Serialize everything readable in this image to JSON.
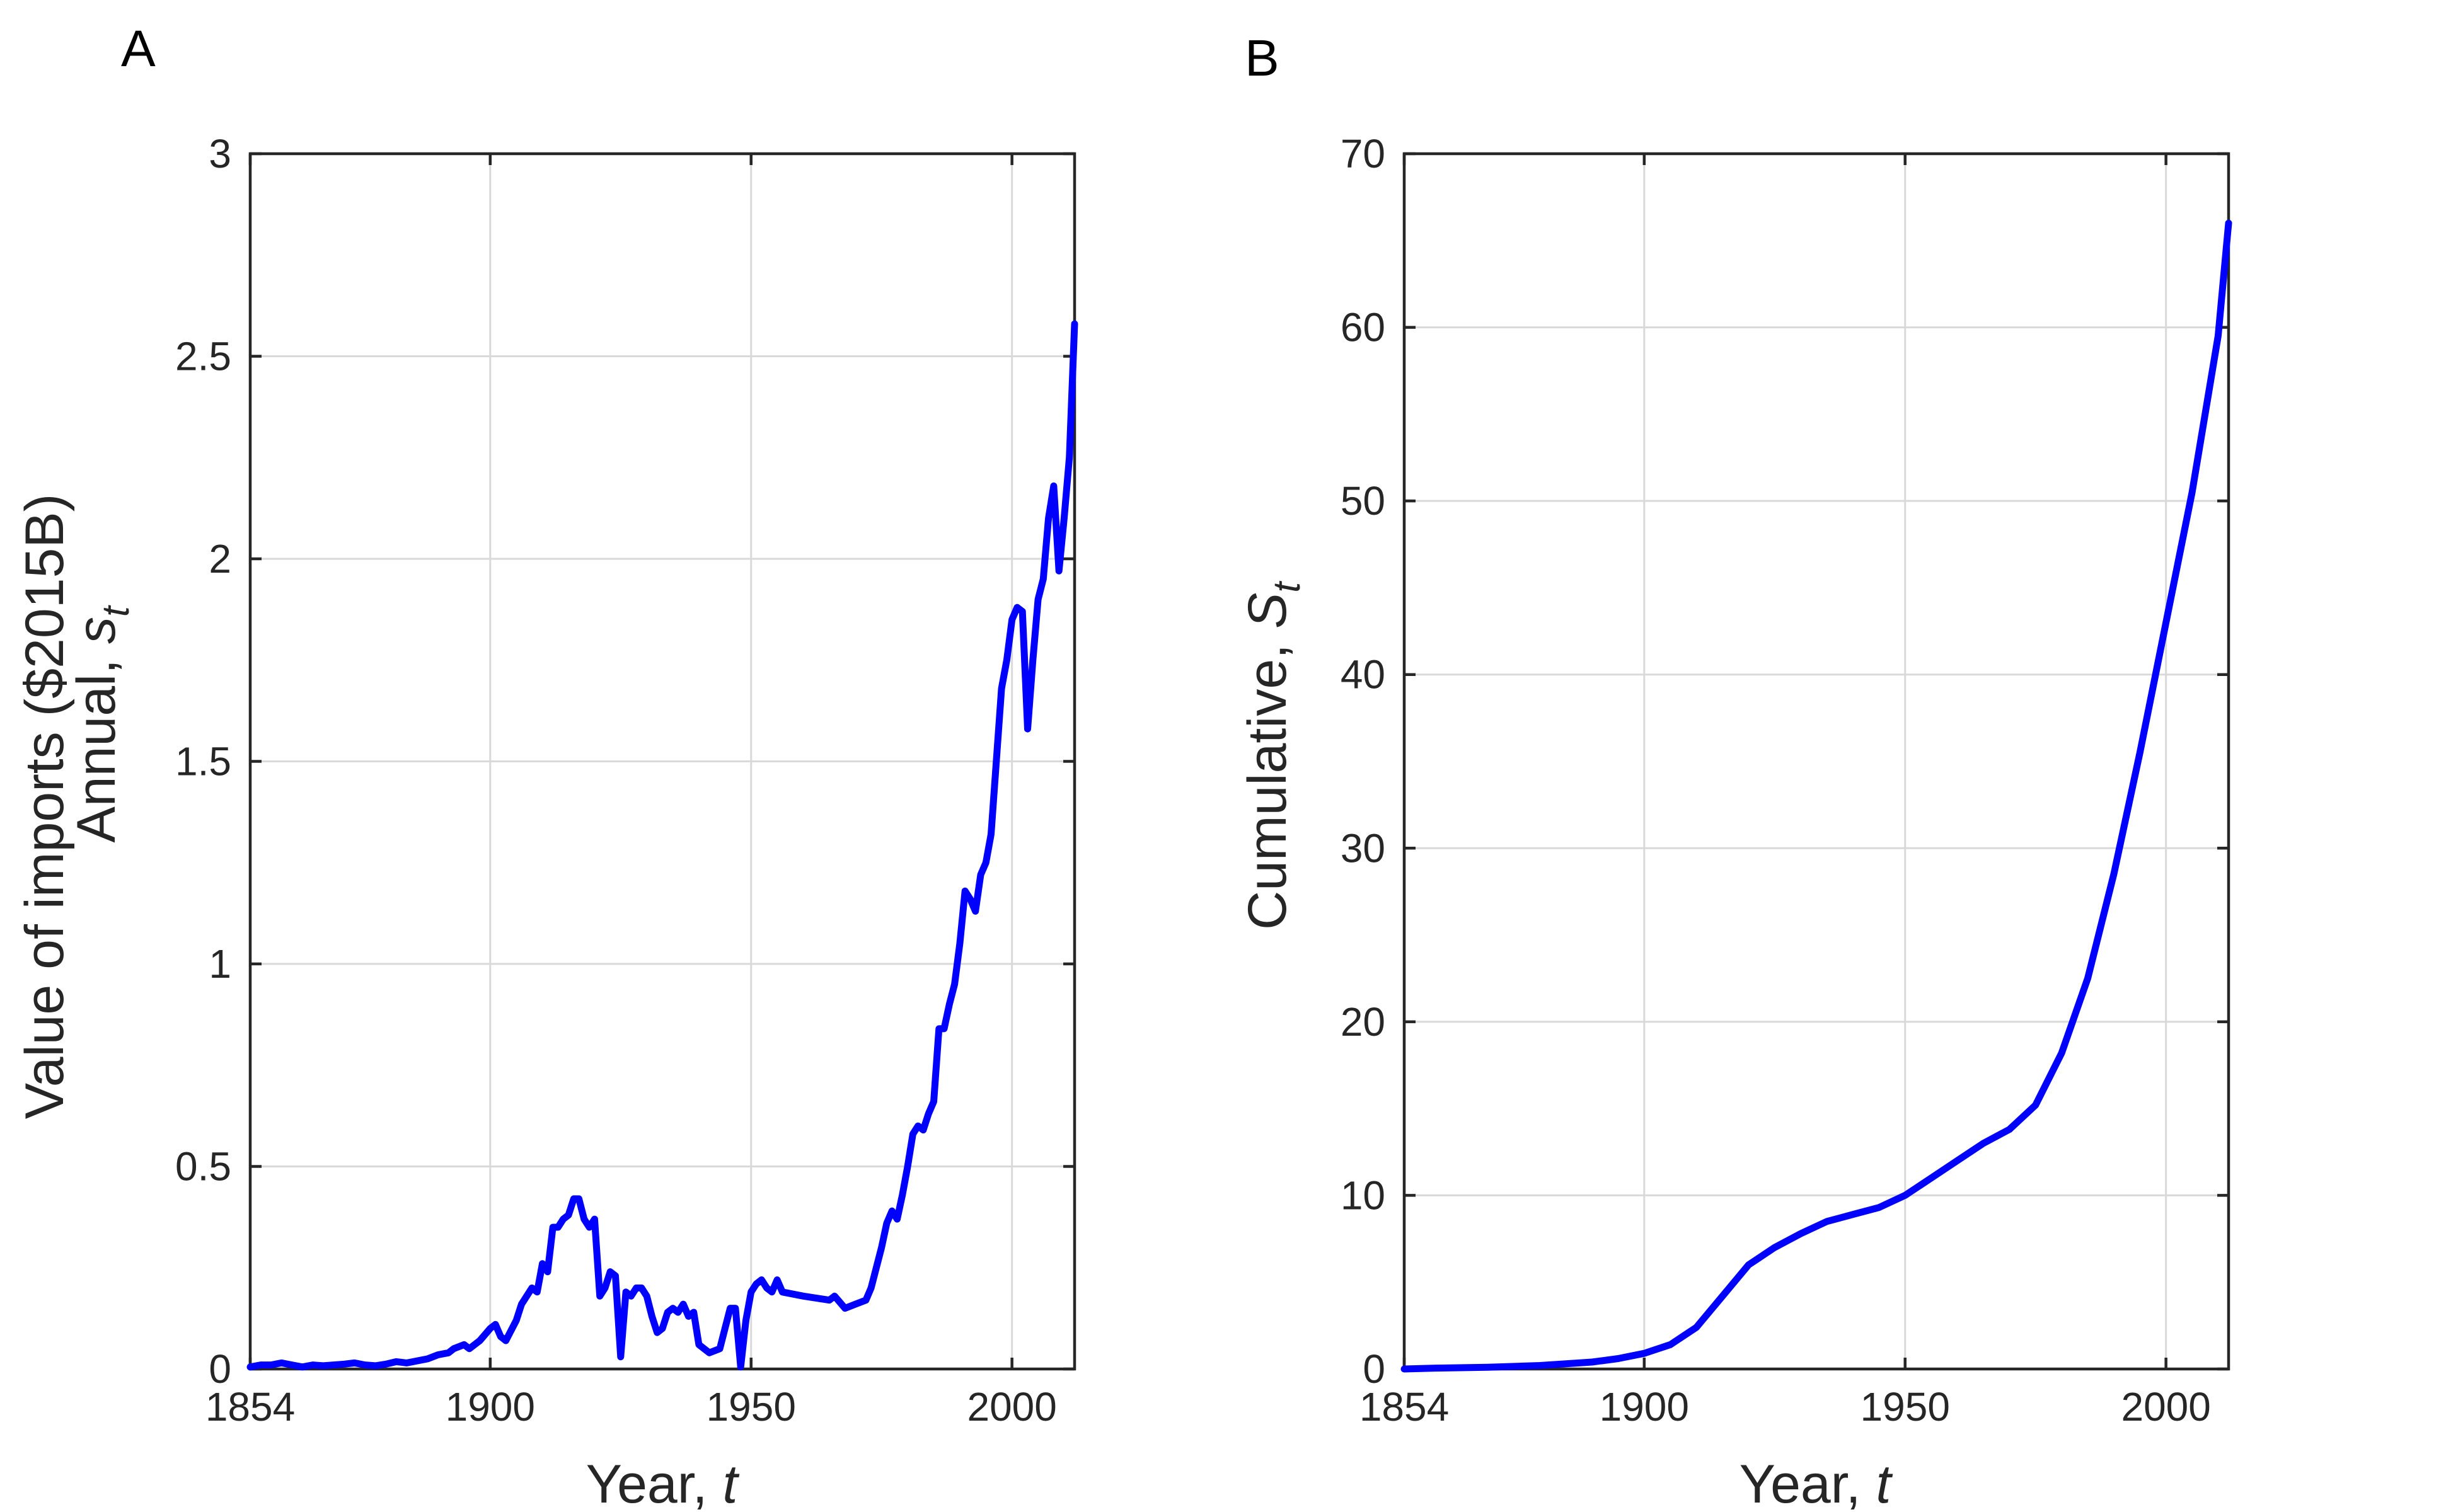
{
  "panels": [
    {
      "letter": "A"
    },
    {
      "letter": "B"
    }
  ],
  "chart_data": [
    {
      "type": "line",
      "panel": "A",
      "xlabel": "Year, t",
      "ylabel_line1": "Value of imports ($2015B)",
      "ylabel_line2": "Annual, s_t",
      "xlim": [
        1854,
        2012
      ],
      "ylim": [
        0,
        3
      ],
      "xticks": [
        1854,
        1900,
        1950,
        2000
      ],
      "yticks": [
        0,
        0.5,
        1,
        1.5,
        2,
        2.5,
        3
      ],
      "grid": true,
      "color": "#0000ff",
      "x": [
        1854,
        1856,
        1858,
        1860,
        1862,
        1864,
        1866,
        1868,
        1870,
        1872,
        1874,
        1876,
        1878,
        1880,
        1882,
        1884,
        1886,
        1888,
        1890,
        1892,
        1893,
        1895,
        1896,
        1898,
        1900,
        1901,
        1902,
        1903,
        1905,
        1906,
        1908,
        1909,
        1910,
        1911,
        1912,
        1913,
        1914,
        1915,
        1916,
        1917,
        1918,
        1919,
        1920,
        1921,
        1922,
        1923,
        1924,
        1925,
        1926,
        1927,
        1928,
        1929,
        1930,
        1931,
        1932,
        1933,
        1934,
        1935,
        1936,
        1937,
        1938,
        1939,
        1940,
        1942,
        1944,
        1945,
        1946,
        1947,
        1948,
        1949,
        1950,
        1951,
        1952,
        1953,
        1954,
        1955,
        1956,
        1960,
        1965,
        1966,
        1968,
        1970,
        1972,
        1973,
        1974,
        1975,
        1976,
        1977,
        1978,
        1979,
        1980,
        1981,
        1982,
        1983,
        1984,
        1985,
        1986,
        1987,
        1988,
        1989,
        1990,
        1991,
        1992,
        1993,
        1994,
        1995,
        1996,
        1997,
        1998,
        1999,
        2000,
        2001,
        2002,
        2003,
        2004,
        2005,
        2006,
        2007,
        2008,
        2009,
        2010,
        2011,
        2012
      ],
      "y": [
        0.005,
        0.01,
        0.01,
        0.015,
        0.01,
        0.005,
        0.01,
        0.008,
        0.01,
        0.012,
        0.015,
        0.01,
        0.008,
        0.012,
        0.018,
        0.015,
        0.02,
        0.025,
        0.035,
        0.04,
        0.05,
        0.06,
        0.05,
        0.07,
        0.1,
        0.11,
        0.08,
        0.07,
        0.12,
        0.16,
        0.2,
        0.19,
        0.26,
        0.24,
        0.35,
        0.35,
        0.37,
        0.38,
        0.42,
        0.42,
        0.37,
        0.35,
        0.37,
        0.18,
        0.2,
        0.24,
        0.23,
        0.03,
        0.19,
        0.18,
        0.2,
        0.2,
        0.18,
        0.13,
        0.09,
        0.1,
        0.14,
        0.15,
        0.14,
        0.16,
        0.13,
        0.14,
        0.06,
        0.04,
        0.05,
        0.1,
        0.15,
        0.15,
        0.005,
        0.12,
        0.19,
        0.21,
        0.22,
        0.2,
        0.19,
        0.22,
        0.19,
        0.18,
        0.17,
        0.18,
        0.15,
        0.16,
        0.17,
        0.2,
        0.25,
        0.3,
        0.36,
        0.39,
        0.37,
        0.43,
        0.5,
        0.58,
        0.6,
        0.59,
        0.63,
        0.66,
        0.84,
        0.84,
        0.9,
        0.95,
        1.05,
        1.18,
        1.16,
        1.13,
        1.22,
        1.25,
        1.32,
        1.5,
        1.68,
        1.75,
        1.85,
        1.88,
        1.87,
        1.58,
        1.75,
        1.9,
        1.95,
        2.1,
        2.18,
        1.97,
        2.1,
        2.25,
        2.58
      ]
    },
    {
      "type": "line",
      "panel": "B",
      "xlabel": "Year, t",
      "ylabel": "Cumulative, S_t",
      "xlim": [
        1854,
        2012
      ],
      "ylim": [
        0,
        70
      ],
      "xticks": [
        1854,
        1900,
        1950,
        2000
      ],
      "yticks": [
        0,
        10,
        20,
        30,
        40,
        50,
        60,
        70
      ],
      "grid": true,
      "color": "#0000ff",
      "x": [
        1854,
        1860,
        1870,
        1880,
        1890,
        1895,
        1900,
        1905,
        1910,
        1915,
        1920,
        1925,
        1930,
        1935,
        1940,
        1945,
        1950,
        1955,
        1960,
        1965,
        1970,
        1975,
        1980,
        1985,
        1990,
        1995,
        2000,
        2005,
        2010,
        2012
      ],
      "y": [
        0,
        0.05,
        0.1,
        0.2,
        0.4,
        0.6,
        0.9,
        1.4,
        2.4,
        4.2,
        6.0,
        7.0,
        7.8,
        8.5,
        8.9,
        9.3,
        10.0,
        11.0,
        12.0,
        13.0,
        13.8,
        15.2,
        18.2,
        22.5,
        28.5,
        35.5,
        43.0,
        50.5,
        59.5,
        66.0
      ]
    }
  ]
}
